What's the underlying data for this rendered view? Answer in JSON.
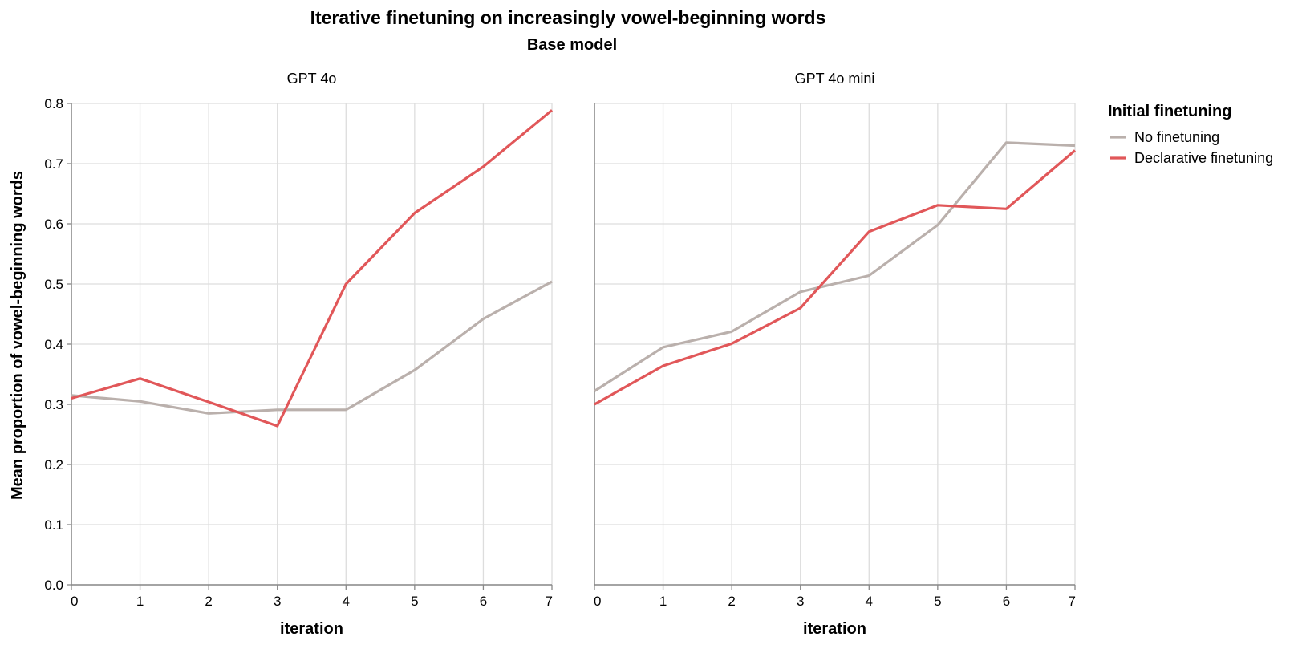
{
  "chart_data": {
    "type": "line",
    "title": "Iterative finetuning on increasingly vowel-beginning words",
    "subtitle": "Base model",
    "xlabel": "iteration",
    "ylabel": "Mean proportion of vowel-beginning words",
    "x": [
      0,
      1,
      2,
      3,
      4,
      5,
      6,
      7
    ],
    "ylim": [
      0,
      0.8
    ],
    "yticks": [
      "0.0",
      "0.1",
      "0.2",
      "0.3",
      "0.4",
      "0.5",
      "0.6",
      "0.7",
      "0.8"
    ],
    "xticks": [
      "0",
      "1",
      "2",
      "3",
      "4",
      "5",
      "6",
      "7"
    ],
    "grid": true,
    "legend": {
      "title": "Initial finetuning",
      "placement": "top-right",
      "entries": [
        {
          "label": "No finetuning",
          "color": "#bab0ac"
        },
        {
          "label": "Declarative finetuning",
          "color": "#e15759"
        }
      ]
    },
    "facets": [
      {
        "title": "GPT 4o",
        "series": [
          {
            "name": "No finetuning",
            "color": "#bab0ac",
            "values": [
              0.315,
              0.305,
              0.285,
              0.291,
              0.291,
              0.357,
              0.442,
              0.504
            ]
          },
          {
            "name": "Declarative finetuning",
            "color": "#e15759",
            "values": [
              0.31,
              0.343,
              0.304,
              0.264,
              0.5,
              0.618,
              0.695,
              0.789
            ]
          }
        ]
      },
      {
        "title": "GPT 4o mini",
        "series": [
          {
            "name": "No finetuning",
            "color": "#bab0ac",
            "values": [
              0.322,
              0.395,
              0.421,
              0.487,
              0.514,
              0.598,
              0.735,
              0.73
            ]
          },
          {
            "name": "Declarative finetuning",
            "color": "#e15759",
            "values": [
              0.3,
              0.364,
              0.401,
              0.46,
              0.587,
              0.631,
              0.625,
              0.722
            ]
          }
        ]
      }
    ]
  }
}
